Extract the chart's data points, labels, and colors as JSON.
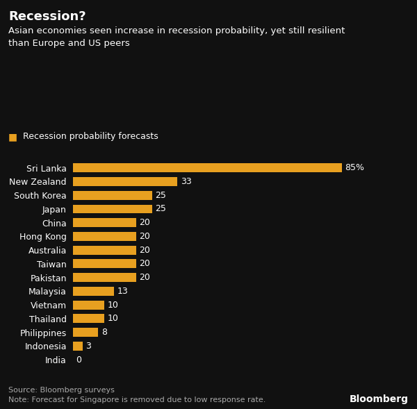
{
  "title": "Recession?",
  "subtitle": "Asian economies seen increase in recession probability, yet still resilient\nthan Europe and US peers",
  "legend_label": "Recession probability forecasts",
  "categories": [
    "Sri Lanka",
    "New Zealand",
    "South Korea",
    "Japan",
    "China",
    "Hong Kong",
    "Australia",
    "Taiwan",
    "Pakistan",
    "Malaysia",
    "Vietnam",
    "Thailand",
    "Philippines",
    "Indonesia",
    "India"
  ],
  "values": [
    85,
    33,
    25,
    25,
    20,
    20,
    20,
    20,
    20,
    13,
    10,
    10,
    8,
    3,
    0
  ],
  "bar_color": "#E8A020",
  "background_color": "#111111",
  "text_color": "#FFFFFF",
  "footer_text": "Source: Bloomberg surveys\nNote: Forecast for Singapore is removed due to low response rate.",
  "bloomberg_label": "Bloomberg",
  "xlim": [
    0,
    95
  ],
  "title_fontsize": 13,
  "subtitle_fontsize": 9.5,
  "label_fontsize": 9,
  "value_fontsize": 9,
  "footer_fontsize": 8,
  "legend_fontsize": 9
}
